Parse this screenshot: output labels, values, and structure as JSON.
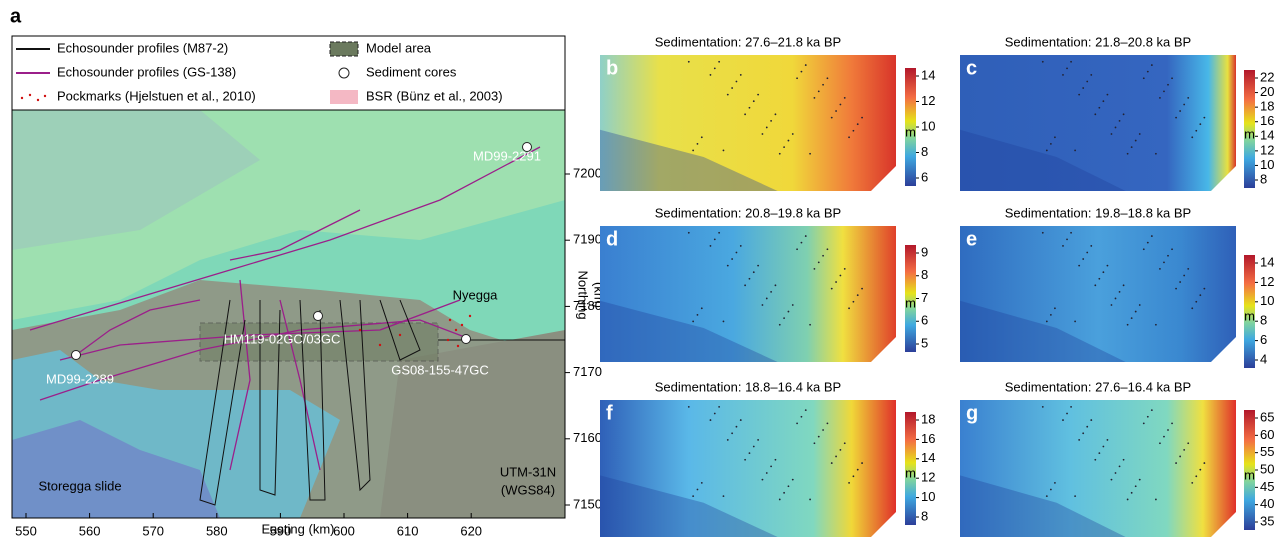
{
  "panel_a": {
    "letter": "a",
    "legend": [
      "Echosounder profiles (M87-2)",
      "Echosounder profiles (GS-138)",
      "Pockmarks (Hjelstuen et al., 2010)",
      "Model area",
      "Sediment cores",
      "BSR (Bünz et al., 2003)"
    ],
    "sites": [
      "MD99-2291",
      "HM119-02GC/03GC",
      "GS08-155-47GC",
      "MD99-2289"
    ],
    "places": [
      "Nyegga",
      "Storegga slide"
    ],
    "projection": [
      "UTM-31N",
      "(WGS84)"
    ],
    "x_axis": {
      "label": "Easting (km)",
      "ticks": [
        550,
        560,
        570,
        580,
        590,
        600,
        610,
        620
      ]
    },
    "y_axis": {
      "label": [
        "Northing",
        "(km)"
      ],
      "ticks": [
        7200,
        7190,
        7180,
        7170,
        7160,
        7150
      ]
    }
  },
  "panels": [
    {
      "letter": "b",
      "title": "Sedimentation: 27.6–21.8 ka BP",
      "unit": "m",
      "colorbar_ticks": [
        14,
        12,
        10,
        8,
        6
      ]
    },
    {
      "letter": "c",
      "title": "Sedimentation: 21.8–20.8 ka BP",
      "unit": "m",
      "colorbar_ticks": [
        22,
        20,
        18,
        16,
        14,
        12,
        10,
        8
      ]
    },
    {
      "letter": "d",
      "title": "Sedimentation: 20.8–19.8 ka BP",
      "unit": "m",
      "colorbar_ticks": [
        9,
        8,
        7,
        6,
        5
      ]
    },
    {
      "letter": "e",
      "title": "Sedimentation: 19.8–18.8 ka BP",
      "unit": "m",
      "colorbar_ticks": [
        14,
        12,
        10,
        8,
        6,
        4
      ]
    },
    {
      "letter": "f",
      "title": "Sedimentation: 18.8–16.4 ka BP",
      "unit": "m",
      "colorbar_ticks": [
        18,
        16,
        14,
        12,
        10,
        8
      ]
    },
    {
      "letter": "g",
      "title": "Sedimentation: 27.6–16.4 ka BP",
      "unit": "m",
      "colorbar_ticks": [
        65,
        60,
        55,
        50,
        45,
        40,
        35
      ]
    }
  ]
}
